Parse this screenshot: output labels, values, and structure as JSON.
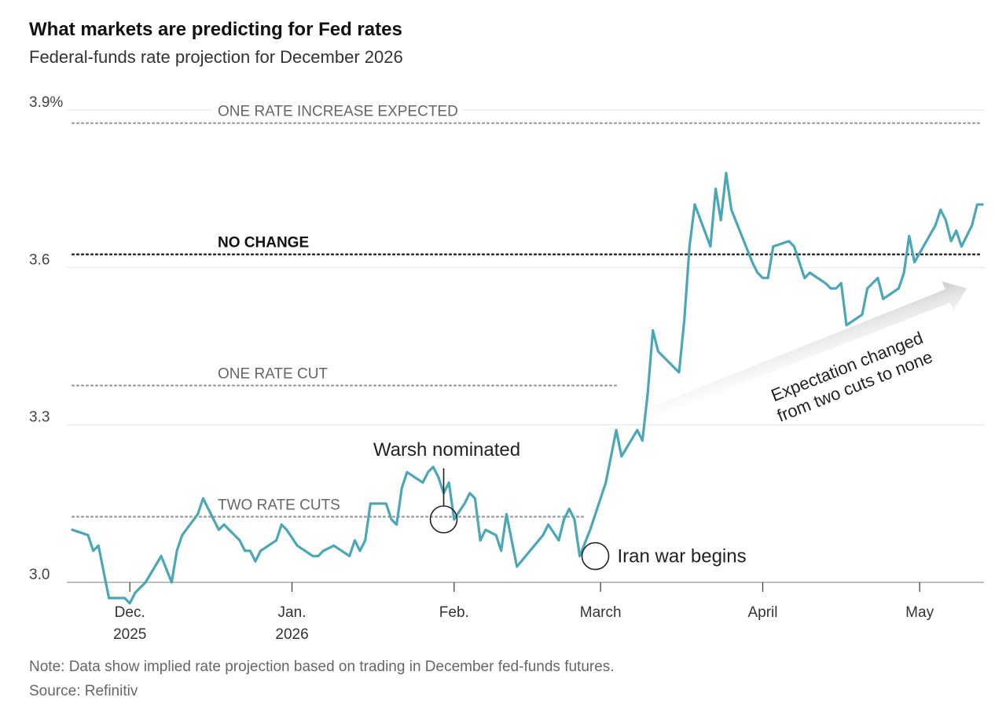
{
  "header": {
    "title": "What markets are predicting for Fed rates",
    "subtitle": "Federal-funds rate projection for December 2026"
  },
  "footer": {
    "note": "Note: Data show implied rate projection based on trading in December fed-funds futures.",
    "source": "Source: Refinitiv"
  },
  "colors": {
    "line": "#4aa7b8",
    "grid": "#e3e3e3",
    "ref_dark": "#222222",
    "ref_light": "#999999"
  },
  "chart_data": {
    "type": "line",
    "title": "What markets are predicting for Fed rates",
    "subtitle": "Federal-funds rate projection for December 2026",
    "ylim": [
      3.0,
      3.9
    ],
    "y_ticks": [
      {
        "value": 3.9,
        "label": "3.9%"
      },
      {
        "value": 3.6,
        "label": "3.6"
      },
      {
        "value": 3.3,
        "label": "3.3"
      },
      {
        "value": 3.0,
        "label": "3.0"
      }
    ],
    "x_ticks": [
      {
        "date": "2025-12-01",
        "label": "Dec.",
        "year": "2025"
      },
      {
        "date": "2026-01-01",
        "label": "Jan.",
        "year": "2026"
      },
      {
        "date": "2026-02-01",
        "label": "Feb.",
        "year": ""
      },
      {
        "date": "2026-03-01",
        "label": "March",
        "year": ""
      },
      {
        "date": "2026-04-01",
        "label": "April",
        "year": ""
      },
      {
        "date": "2026-05-01",
        "label": "May",
        "year": ""
      }
    ],
    "xlim": [
      "2025-11-20",
      "2026-05-13"
    ],
    "grid": true,
    "reference_lines": [
      {
        "value": 3.875,
        "label": "ONE RATE INCREASE EXPECTED",
        "bold": false,
        "x_end": "2026-05-13"
      },
      {
        "value": 3.625,
        "label": "NO CHANGE",
        "bold": true,
        "x_end": "2026-05-13"
      },
      {
        "value": 3.375,
        "label": "ONE RATE CUT",
        "bold": false,
        "x_end": "2026-03-04"
      },
      {
        "value": 3.125,
        "label": "TWO RATE CUTS",
        "bold": false,
        "x_end": "2026-02-26"
      }
    ],
    "annotations": [
      {
        "label": "Warsh nominated",
        "date": "2026-01-30",
        "value": 3.12
      },
      {
        "label": "Iran war begins",
        "date": "2026-02-28",
        "value": 3.05
      }
    ],
    "arrow_note": [
      "Expectation changed",
      "from two cuts to none"
    ],
    "series": [
      {
        "points": [
          [
            "2025-11-20",
            3.1
          ],
          [
            "2025-11-23",
            3.09
          ],
          [
            "2025-11-24",
            3.06
          ],
          [
            "2025-11-25",
            3.07
          ],
          [
            "2025-11-26",
            3.02
          ],
          [
            "2025-11-27",
            2.97
          ],
          [
            "2025-11-30",
            2.97
          ],
          [
            "2025-12-01",
            2.96
          ],
          [
            "2025-12-02",
            2.98
          ],
          [
            "2025-12-04",
            3.0
          ],
          [
            "2025-12-07",
            3.05
          ],
          [
            "2025-12-09",
            3.0
          ],
          [
            "2025-12-10",
            3.06
          ],
          [
            "2025-12-11",
            3.09
          ],
          [
            "2025-12-14",
            3.13
          ],
          [
            "2025-12-15",
            3.16
          ],
          [
            "2025-12-17",
            3.12
          ],
          [
            "2025-12-18",
            3.1
          ],
          [
            "2025-12-19",
            3.11
          ],
          [
            "2025-12-22",
            3.08
          ],
          [
            "2025-12-23",
            3.06
          ],
          [
            "2025-12-24",
            3.06
          ],
          [
            "2025-12-25",
            3.04
          ],
          [
            "2025-12-26",
            3.06
          ],
          [
            "2025-12-29",
            3.08
          ],
          [
            "2025-12-30",
            3.11
          ],
          [
            "2025-12-31",
            3.1
          ],
          [
            "2026-01-02",
            3.07
          ],
          [
            "2026-01-05",
            3.05
          ],
          [
            "2026-01-06",
            3.05
          ],
          [
            "2026-01-07",
            3.06
          ],
          [
            "2026-01-09",
            3.07
          ],
          [
            "2026-01-12",
            3.05
          ],
          [
            "2026-01-13",
            3.08
          ],
          [
            "2026-01-14",
            3.06
          ],
          [
            "2026-01-15",
            3.08
          ],
          [
            "2026-01-16",
            3.15
          ],
          [
            "2026-01-19",
            3.15
          ],
          [
            "2026-01-20",
            3.12
          ],
          [
            "2026-01-21",
            3.11
          ],
          [
            "2026-01-22",
            3.18
          ],
          [
            "2026-01-23",
            3.21
          ],
          [
            "2026-01-26",
            3.19
          ],
          [
            "2026-01-27",
            3.21
          ],
          [
            "2026-01-28",
            3.22
          ],
          [
            "2026-01-29",
            3.2
          ],
          [
            "2026-01-30",
            3.17
          ],
          [
            "2026-01-31",
            3.19
          ],
          [
            "2026-02-01",
            3.12
          ],
          [
            "2026-02-03",
            3.15
          ],
          [
            "2026-02-04",
            3.17
          ],
          [
            "2026-02-05",
            3.16
          ],
          [
            "2026-02-06",
            3.08
          ],
          [
            "2026-02-07",
            3.1
          ],
          [
            "2026-02-09",
            3.09
          ],
          [
            "2026-02-10",
            3.06
          ],
          [
            "2026-02-11",
            3.13
          ],
          [
            "2026-02-13",
            3.03
          ],
          [
            "2026-02-18",
            3.09
          ],
          [
            "2026-02-19",
            3.11
          ],
          [
            "2026-02-21",
            3.08
          ],
          [
            "2026-02-22",
            3.12
          ],
          [
            "2026-02-23",
            3.14
          ],
          [
            "2026-02-24",
            3.12
          ],
          [
            "2026-02-25",
            3.05
          ],
          [
            "2026-02-27",
            3.1
          ],
          [
            "2026-03-02",
            3.19
          ],
          [
            "2026-03-04",
            3.29
          ],
          [
            "2026-03-05",
            3.24
          ],
          [
            "2026-03-08",
            3.29
          ],
          [
            "2026-03-09",
            3.27
          ],
          [
            "2026-03-10",
            3.36
          ],
          [
            "2026-03-11",
            3.48
          ],
          [
            "2026-03-12",
            3.44
          ],
          [
            "2026-03-16",
            3.4
          ],
          [
            "2026-03-17",
            3.5
          ],
          [
            "2026-03-18",
            3.64
          ],
          [
            "2026-03-19",
            3.72
          ],
          [
            "2026-03-22",
            3.64
          ],
          [
            "2026-03-23",
            3.75
          ],
          [
            "2026-03-24",
            3.69
          ],
          [
            "2026-03-25",
            3.78
          ],
          [
            "2026-03-26",
            3.71
          ],
          [
            "2026-03-30",
            3.61
          ],
          [
            "2026-03-31",
            3.59
          ],
          [
            "2026-04-01",
            3.58
          ],
          [
            "2026-04-02",
            3.58
          ],
          [
            "2026-04-03",
            3.64
          ],
          [
            "2026-04-06",
            3.65
          ],
          [
            "2026-04-07",
            3.64
          ],
          [
            "2026-04-08",
            3.61
          ],
          [
            "2026-04-09",
            3.58
          ],
          [
            "2026-04-10",
            3.59
          ],
          [
            "2026-04-13",
            3.57
          ],
          [
            "2026-04-14",
            3.56
          ],
          [
            "2026-04-15",
            3.56
          ],
          [
            "2026-04-16",
            3.57
          ],
          [
            "2026-04-17",
            3.49
          ],
          [
            "2026-04-20",
            3.51
          ],
          [
            "2026-04-21",
            3.56
          ],
          [
            "2026-04-23",
            3.58
          ],
          [
            "2026-04-24",
            3.54
          ],
          [
            "2026-04-27",
            3.56
          ],
          [
            "2026-04-28",
            3.59
          ],
          [
            "2026-04-29",
            3.66
          ],
          [
            "2026-04-30",
            3.61
          ],
          [
            "2026-05-04",
            3.68
          ],
          [
            "2026-05-05",
            3.71
          ],
          [
            "2026-05-06",
            3.69
          ],
          [
            "2026-05-07",
            3.65
          ],
          [
            "2026-05-08",
            3.67
          ],
          [
            "2026-05-09",
            3.64
          ],
          [
            "2026-05-11",
            3.68
          ],
          [
            "2026-05-12",
            3.72
          ],
          [
            "2026-05-13",
            3.72
          ]
        ]
      }
    ]
  }
}
